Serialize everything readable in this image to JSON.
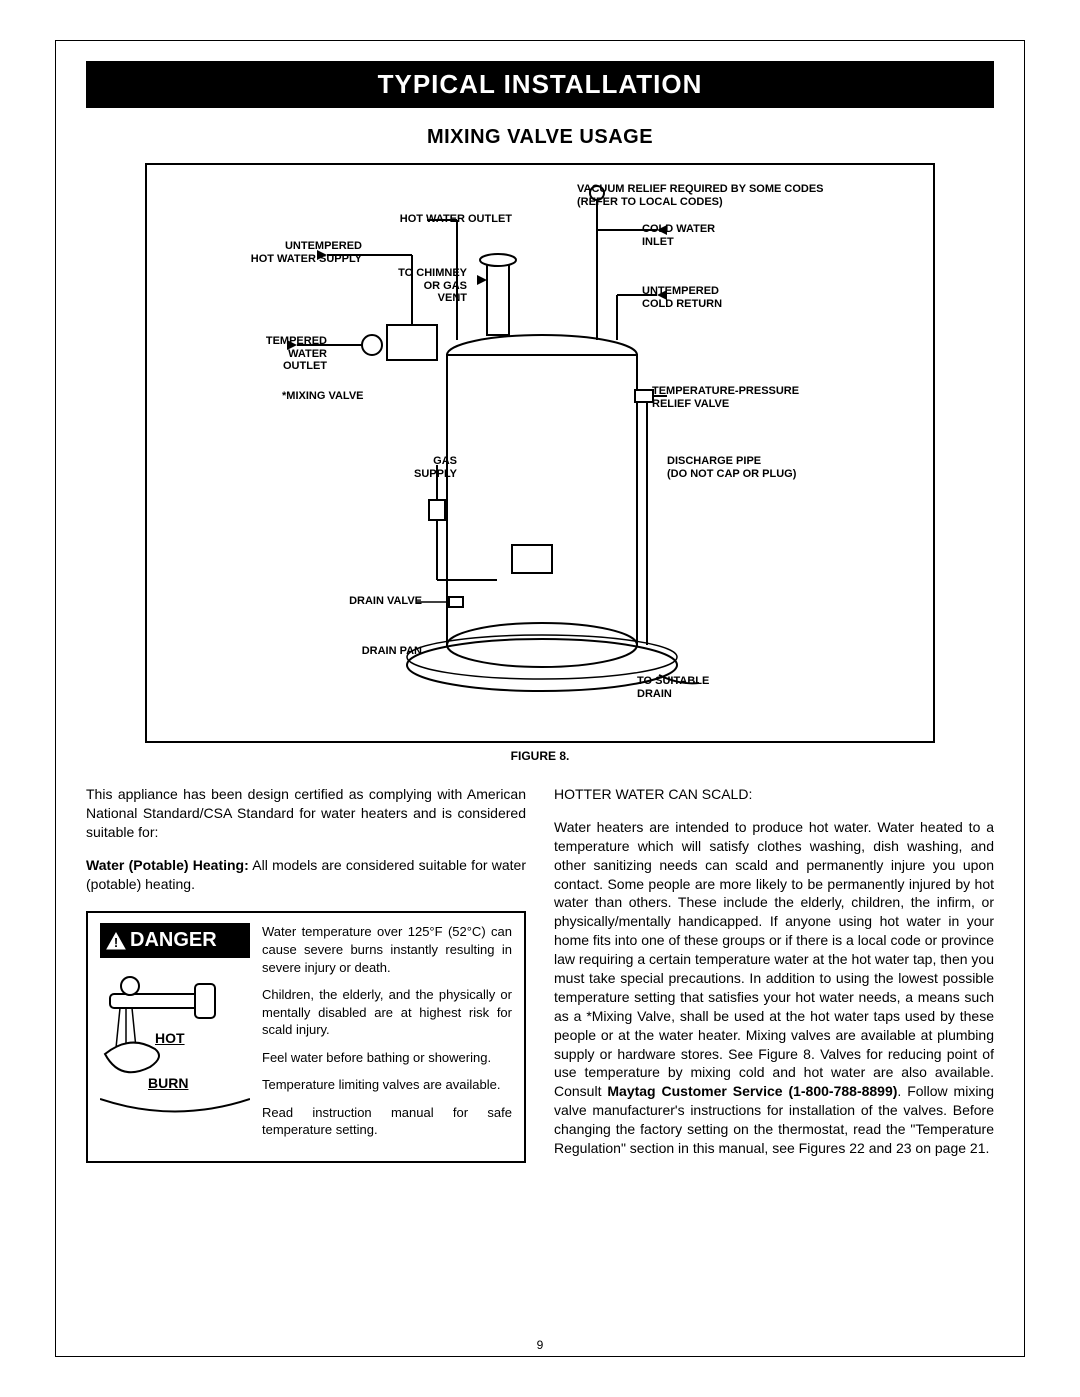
{
  "banner": "TYPICAL INSTALLATION",
  "subtitle": "MIXING VALVE USAGE",
  "figure_caption": "FIGURE 8.",
  "diagram": {
    "labels": {
      "vacuum_relief": "VACUUM RELIEF REQUIRED BY SOME CODES\n(REFER TO LOCAL CODES)",
      "hot_water_outlet": "HOT WATER OUTLET",
      "untempered_hot": "UNTEMPERED\nHOT WATER SUPPLY",
      "to_chimney": "TO CHIMNEY\nOR GAS\nVENT",
      "cold_water_inlet": "COLD WATER\nINLET",
      "untempered_cold": "UNTEMPERED\nCOLD RETURN",
      "tempered_outlet": "TEMPERED\nWATER\nOUTLET",
      "mixing_valve": "*MIXING VALVE",
      "temp_pressure": "TEMPERATURE-PRESSURE\nRELIEF VALVE",
      "gas_supply": "GAS\nSUPPLY",
      "discharge_pipe": "DISCHARGE PIPE\n(DO NOT CAP OR PLUG)",
      "drain_valve": "DRAIN VALVE",
      "drain_pan": "DRAIN PAN",
      "to_drain": "TO SUITABLE\nDRAIN"
    }
  },
  "left_column": {
    "p1": "This appliance has been design certified as complying with American National Standard/CSA Standard for water heaters and is considered suitable for:",
    "p2_bold": "Water (Potable) Heating:",
    "p2_rest": " All models are considered suitable for water (potable) heating."
  },
  "danger": {
    "tag": "DANGER",
    "hot": "HOT",
    "burn": "BURN",
    "p1": "Water temperature over 125°F (52°C) can cause severe burns instantly resulting in severe injury or death.",
    "p2": "Children, the elderly, and the physically or mentally disabled are at highest risk for scald injury.",
    "p3": "Feel water before bathing or showering.",
    "p4": "Temperature limiting valves are available.",
    "p5": "Read instruction manual for safe temperature setting."
  },
  "right_column": {
    "h": "HOTTER WATER CAN SCALD:",
    "p_pre": "Water heaters are intended to produce hot water.  Water heated to a temperature which will satisfy clothes washing, dish washing, and other sanitizing needs can scald and permanently injure you upon contact.  Some people are more likely to be permanently injured by hot water than others.  These include the elderly, children, the infirm, or physically/mentally handicapped.  If anyone using hot water in your home fits into one of these groups or if there is a local code or province law requiring a certain temperature water at the hot water tap, then you must take special precautions.  In addition to using the lowest possible temperature setting that satisfies your hot water needs, a means such as a *Mixing Valve, shall be used at the hot water taps used by these people or at the water heater.  Mixing valves are available at plumbing supply or hardware stores. See Figure 8. Valves for reducing point of use temperature by mixing cold and hot water are also available. Consult ",
    "p_bold1": "Maytag Customer Service (1-800-788-8899)",
    "p_post": ".  Follow mixing valve manufacturer's instructions for installation of the valves.  Before changing the factory setting on the thermostat, read the \"Temperature Regulation\" section in this manual, see Figures 22 and 23 on page 21."
  },
  "page_number": "9"
}
